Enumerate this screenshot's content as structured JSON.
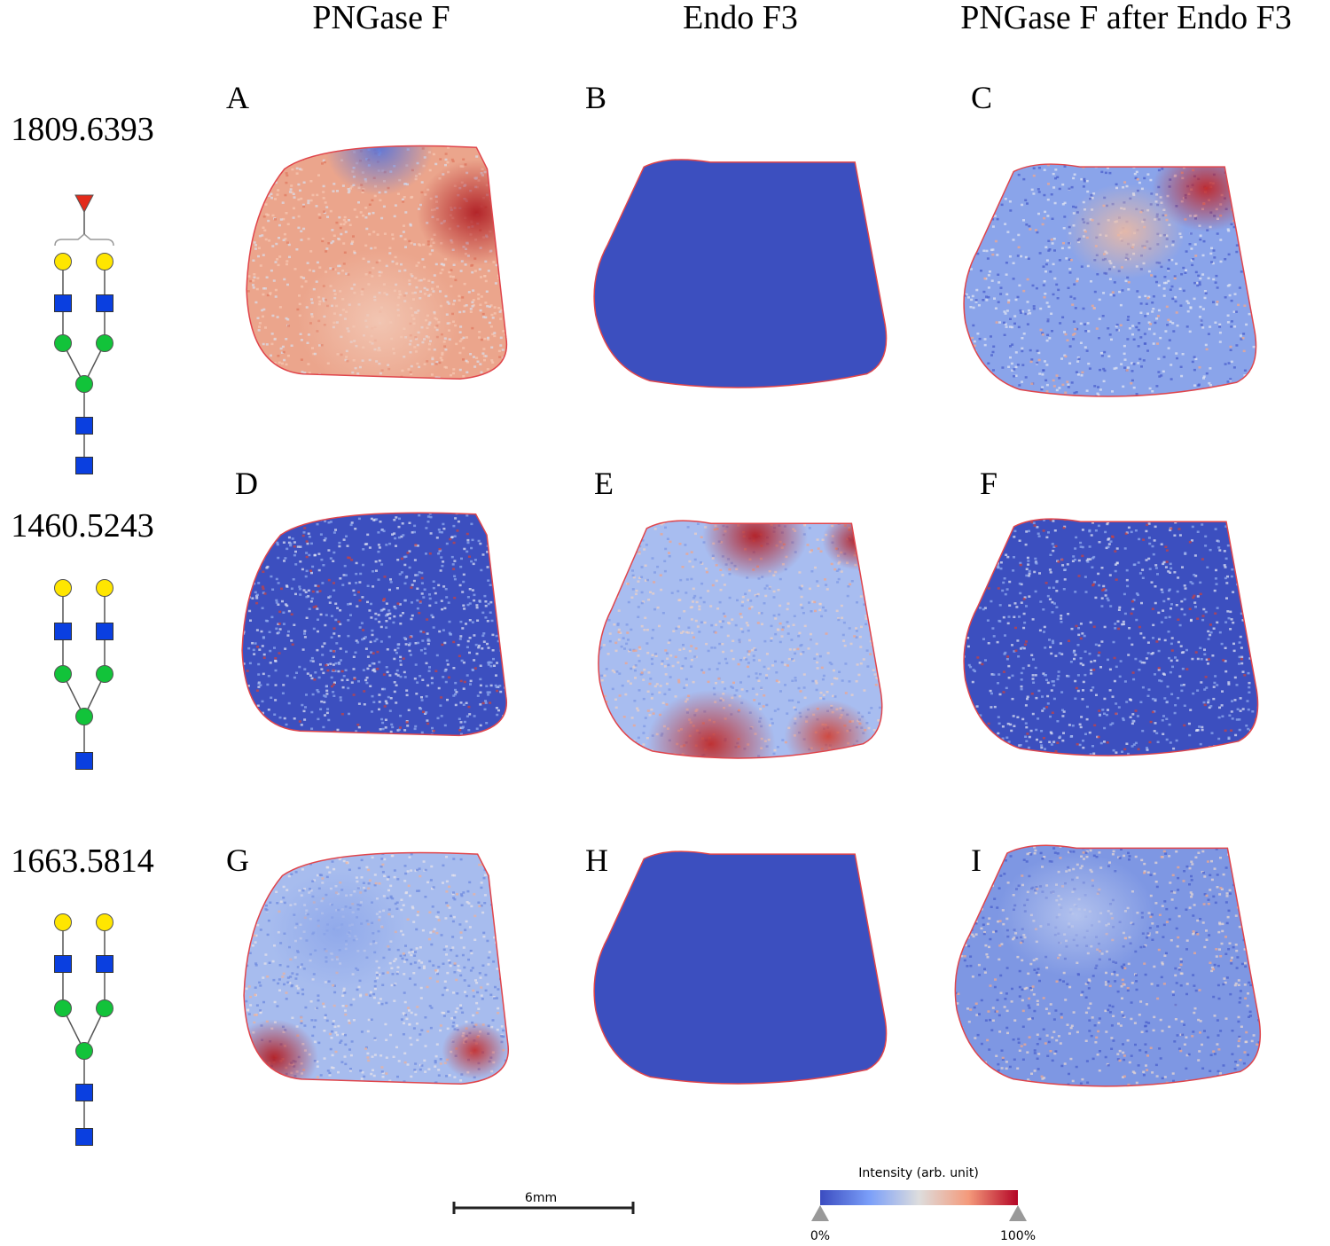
{
  "columns": [
    "PNGase F",
    "Endo F3",
    "PNGase F after Endo F3"
  ],
  "rows": [
    {
      "mass": "1809.6393",
      "panels": [
        "A",
        "B",
        "C"
      ]
    },
    {
      "mass": "1460.5243",
      "panels": [
        "D",
        "E",
        "F"
      ]
    },
    {
      "mass": "1663.5814",
      "panels": [
        "G",
        "H",
        "I"
      ]
    }
  ],
  "scale_bar": {
    "label": "6mm"
  },
  "colorbar": {
    "title": "Intensity (arb. unit)",
    "min_label": "0%",
    "max_label": "100%"
  }
}
